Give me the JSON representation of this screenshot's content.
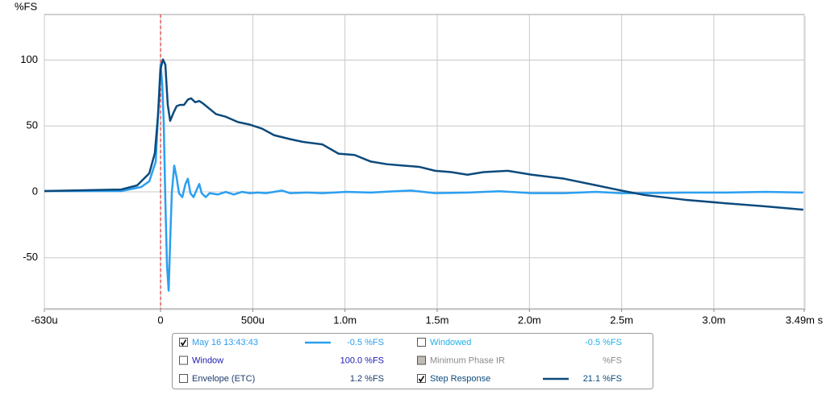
{
  "chart_data": {
    "type": "line",
    "y_axis_label": "%FS",
    "xlim": [
      -0.00063,
      0.00349
    ],
    "ylim": [
      -88.7,
      134.6
    ],
    "xticks": [
      {
        "value": -0.00063,
        "label": "-630u"
      },
      0,
      {
        "value": 0.0005,
        "label": "500u"
      },
      {
        "value": 0.001,
        "label": "1.0m"
      },
      {
        "value": 0.0015,
        "label": "1.5m"
      },
      {
        "value": 0.002,
        "label": "2.0m"
      },
      {
        "value": 0.0025,
        "label": "2.5m"
      },
      {
        "value": 0.003,
        "label": "3.0m"
      },
      {
        "value": 0.00349,
        "label": "3.49m s"
      }
    ],
    "yticks": [
      100,
      50,
      0,
      -50
    ],
    "grid": true,
    "cursor_x": 0,
    "series": [
      {
        "name": "May 16 13:43:43",
        "color": "#2b9ff0",
        "readout": "-0.5 %FS",
        "checked": true,
        "x": [
          -0.00063,
          -0.000214,
          -0.000105,
          -6.1e-05,
          -2.6e-05,
          -9e-06,
          0,
          9e-06,
          1.7e-05,
          2.6e-05,
          3.5e-05,
          4.4e-05,
          5.2e-05,
          6.1e-05,
          7.4e-05,
          8.7e-05,
          0.0001,
          0.000118,
          0.000135,
          0.000148,
          0.000162,
          0.000179,
          0.000197,
          0.00021,
          0.000223,
          0.000245,
          0.000266,
          0.00031,
          0.000354,
          0.000397,
          0.000441,
          0.000485,
          0.000528,
          0.000572,
          0.000616,
          0.000659,
          0.000703,
          0.00079,
          0.000878,
          0.001009,
          0.00114,
          0.001271,
          0.001358,
          0.001489,
          0.001664,
          0.001838,
          0.002013,
          0.002188,
          0.002362,
          0.002498,
          0.002624,
          0.002843,
          0.003061,
          0.00328,
          0.003485
        ],
        "values": [
          0.6,
          0.6,
          3.7,
          8,
          23,
          72,
          97,
          82,
          54,
          -7,
          -56,
          -75,
          -38,
          -1,
          20,
          11,
          -1,
          -4,
          6,
          10,
          -1,
          -4,
          2,
          6,
          -1,
          -4,
          -1,
          -2,
          0,
          -2,
          0,
          -1,
          -0.5,
          -1,
          0,
          1,
          -1,
          -0.5,
          -1,
          0,
          -0.5,
          0.5,
          1,
          -1,
          -0.5,
          0.5,
          -1,
          -1,
          0,
          -1,
          -1,
          -0.5,
          -0.5,
          0,
          -0.5
        ]
      },
      {
        "name": "Step Response",
        "color": "#0c4a7c",
        "readout": "21.1 %FS",
        "checked": true,
        "x": [
          -0.00063,
          -0.000214,
          -0.000127,
          -6.1e-05,
          -3.1e-05,
          -1.3e-05,
          0,
          1.3e-05,
          2.6e-05,
          3.9e-05,
          5.2e-05,
          7e-05,
          8.7e-05,
          0.000105,
          0.000127,
          0.000148,
          0.000166,
          0.000188,
          0.00021,
          0.000231,
          0.000266,
          0.000301,
          0.000354,
          0.000419,
          0.000485,
          0.00055,
          0.000616,
          0.000703,
          0.000769,
          0.000878,
          0.000965,
          0.001052,
          0.00114,
          0.001227,
          0.001314,
          0.001402,
          0.001489,
          0.001576,
          0.001664,
          0.001751,
          0.001882,
          0.002013,
          0.002188,
          0.002362,
          0.002498,
          0.002624,
          0.002843,
          0.003061,
          0.00328,
          0.003485
        ],
        "values": [
          0.6,
          1.8,
          4.9,
          14.1,
          29.4,
          59.4,
          93.2,
          100.5,
          96.5,
          66.1,
          53.9,
          60,
          65,
          66,
          66,
          70,
          71,
          68,
          69,
          67,
          63,
          59,
          57,
          53,
          51,
          48,
          43,
          40,
          38,
          36,
          29,
          28,
          23,
          21,
          20,
          19,
          16,
          15,
          13,
          15,
          16,
          13,
          10,
          5,
          1,
          -2.4,
          -6,
          -8.6,
          -11,
          -13.5
        ]
      }
    ],
    "other_legend_entries": [
      {
        "label": "Window",
        "readout": "100.0 %FS",
        "checked": false,
        "color": "#1a1ab0"
      },
      {
        "label": "Envelope (ETC)",
        "readout": "1.2 %FS",
        "checked": false,
        "color": "#1c3c6c"
      },
      {
        "label": "Windowed",
        "readout": "-0.5 %FS",
        "checked": false,
        "color": "#1fb0e8"
      },
      {
        "label": "Minimum Phase IR",
        "readout": "%FS",
        "checked": false,
        "color": "#8a8a8a",
        "enabled": false
      }
    ]
  }
}
